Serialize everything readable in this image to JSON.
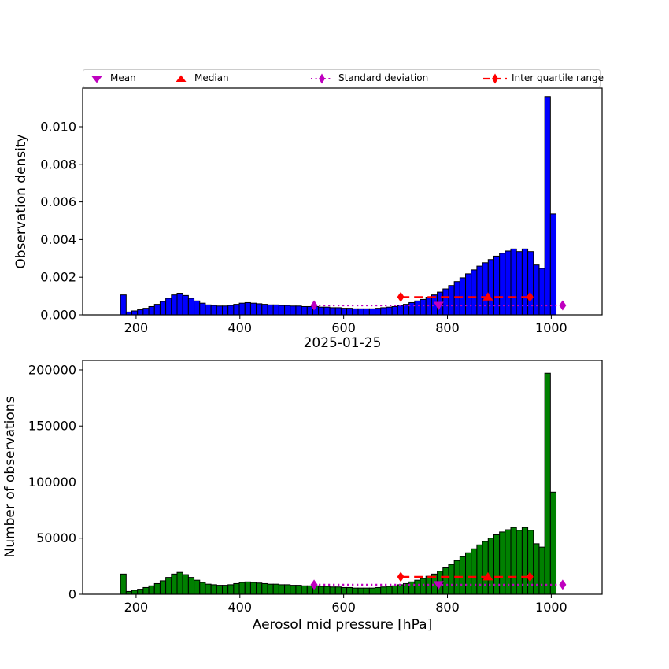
{
  "figure": {
    "title": "2025-01-25",
    "background": "#ffffff"
  },
  "palette": {
    "blue": "#0000ff",
    "green": "#008000",
    "red": "#ff0000",
    "magenta": "#bf00bf",
    "axis": "#000000",
    "legend_border": "#cccccc"
  },
  "legend": {
    "items": [
      {
        "label": "Mean",
        "marker": "triangle-down",
        "color": "#bf00bf",
        "line": "none"
      },
      {
        "label": "Median",
        "marker": "triangle-up",
        "color": "#ff0000",
        "line": "none"
      },
      {
        "label": "Standard deviation",
        "marker": "thin-diamond",
        "color": "#bf00bf",
        "line": "dotted"
      },
      {
        "label": "Inter quartile range",
        "marker": "thin-diamond",
        "color": "#ff0000",
        "line": "dashed"
      }
    ]
  },
  "chart_data": [
    {
      "type": "bar",
      "name": "observation-density-histogram",
      "ylabel": "Observation density",
      "bar_color": "#0000ff",
      "grid": false,
      "xlim": [
        97,
        1098
      ],
      "ylim": [
        0,
        0.01205
      ],
      "xticks": [
        200,
        400,
        600,
        800,
        1000
      ],
      "yticks": [
        0.0,
        0.002,
        0.004,
        0.006,
        0.008,
        0.01
      ],
      "ytick_labels": [
        "0.000",
        "0.002",
        "0.004",
        "0.006",
        "0.008",
        "0.010"
      ],
      "bin_start": 170,
      "bin_width": 10.9,
      "values": [
        0.00106,
        0.00015,
        0.00021,
        0.00027,
        0.00035,
        0.00044,
        0.00056,
        0.00071,
        0.00088,
        0.00106,
        0.00115,
        0.00103,
        0.00088,
        0.00074,
        0.00062,
        0.00053,
        0.0005,
        0.00047,
        0.00047,
        0.0005,
        0.00056,
        0.00062,
        0.00065,
        0.00062,
        0.00059,
        0.00056,
        0.00053,
        0.00053,
        0.0005,
        0.0005,
        0.00047,
        0.00047,
        0.00044,
        0.00044,
        0.00044,
        0.00041,
        0.00041,
        0.00038,
        0.00038,
        0.00035,
        0.00035,
        0.00032,
        0.00032,
        0.00032,
        0.00032,
        0.00035,
        0.00038,
        0.00041,
        0.00044,
        0.0005,
        0.00056,
        0.00065,
        0.00074,
        0.00082,
        0.00094,
        0.00106,
        0.00121,
        0.00138,
        0.00156,
        0.00177,
        0.00197,
        0.00218,
        0.00239,
        0.00259,
        0.00277,
        0.00294,
        0.00312,
        0.00327,
        0.00339,
        0.0035,
        0.00336,
        0.0035,
        0.00336,
        0.00265,
        0.00247,
        0.0116,
        0.00536
      ],
      "markers": {
        "mean": {
          "x": 783,
          "y": 0.0005,
          "color": "#bf00bf",
          "shape": "triangle-down"
        },
        "median": {
          "x": 878,
          "y": 0.00095,
          "color": "#ff0000",
          "shape": "triangle-up"
        },
        "std_range": {
          "x1": 543,
          "x2": 1022,
          "y": 0.0005,
          "color": "#bf00bf",
          "style": "dotted"
        },
        "iqr_range": {
          "x1": 710,
          "x2": 959,
          "y": 0.00095,
          "color": "#ff0000",
          "style": "dashed"
        }
      }
    },
    {
      "type": "bar",
      "name": "observation-count-histogram",
      "ylabel": "Number of observations",
      "xlabel": "Aerosol mid pressure [hPa]",
      "bar_color": "#008000",
      "grid": false,
      "xlim": [
        97,
        1098
      ],
      "ylim": [
        0,
        208400
      ],
      "xticks": [
        200,
        400,
        600,
        800,
        1000
      ],
      "yticks": [
        0,
        50000,
        100000,
        150000,
        200000
      ],
      "ytick_labels": [
        "0",
        "50000",
        "100000",
        "150000",
        "200000"
      ],
      "bin_start": 170,
      "bin_width": 10.9,
      "values": [
        18000,
        2500,
        3500,
        4500,
        6000,
        7500,
        9500,
        12000,
        15000,
        18000,
        19500,
        17500,
        15000,
        12500,
        10500,
        9000,
        8500,
        8000,
        8000,
        8500,
        9500,
        10500,
        11000,
        10500,
        10000,
        9500,
        9000,
        9000,
        8500,
        8500,
        8000,
        8000,
        7500,
        7500,
        7500,
        7000,
        7000,
        6500,
        6500,
        6000,
        6000,
        5500,
        5500,
        5500,
        5500,
        6000,
        6500,
        7000,
        7500,
        8500,
        9500,
        11000,
        12500,
        14000,
        16000,
        18000,
        20500,
        23500,
        26500,
        30000,
        33500,
        37000,
        40500,
        44000,
        47000,
        50000,
        53000,
        55500,
        57500,
        59500,
        57000,
        59500,
        57000,
        45000,
        42000,
        197000,
        91000
      ],
      "markers": {
        "mean": {
          "x": 783,
          "y": 8500,
          "color": "#bf00bf",
          "shape": "triangle-down"
        },
        "median": {
          "x": 878,
          "y": 15500,
          "color": "#ff0000",
          "shape": "triangle-up"
        },
        "std_range": {
          "x1": 543,
          "x2": 1022,
          "y": 8500,
          "color": "#bf00bf",
          "style": "dotted"
        },
        "iqr_range": {
          "x1": 710,
          "x2": 959,
          "y": 15500,
          "color": "#ff0000",
          "style": "dashed"
        }
      }
    }
  ]
}
